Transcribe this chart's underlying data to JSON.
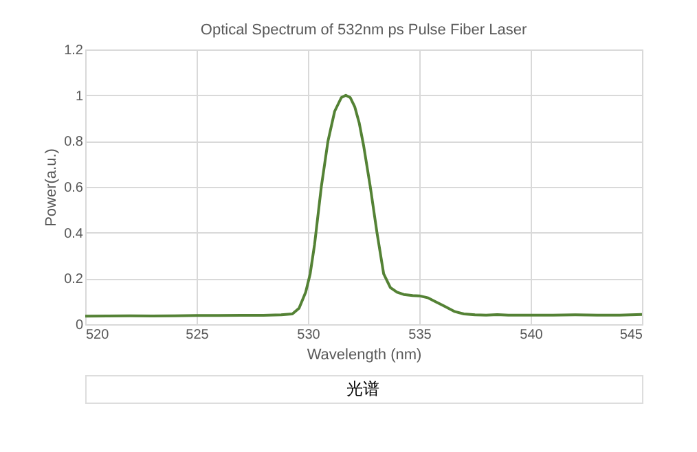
{
  "chart_data": {
    "type": "line",
    "title": "Optical Spectrum of 532nm ps Pulse Fiber Laser",
    "xlabel": "Wavelength (nm)",
    "ylabel": "Power(a.u.)",
    "annotations": [
      "光谱"
    ],
    "series": [
      {
        "color": "#548235",
        "x": [
          520,
          521,
          522,
          523,
          524,
          525,
          526,
          527,
          528,
          528.8,
          529.3,
          529.6,
          529.9,
          530.1,
          530.3,
          530.6,
          530.9,
          531.2,
          531.5,
          531.7,
          531.9,
          532.1,
          532.3,
          532.5,
          532.8,
          533.1,
          533.4,
          533.7,
          534.0,
          534.3,
          534.7,
          535.0,
          535.4,
          535.7,
          536.1,
          536.6,
          537.0,
          537.5,
          538.0,
          538.5,
          539,
          540,
          541,
          542,
          543,
          544,
          545
        ],
        "values": [
          0.035,
          0.036,
          0.037,
          0.036,
          0.037,
          0.038,
          0.038,
          0.039,
          0.039,
          0.041,
          0.045,
          0.07,
          0.14,
          0.22,
          0.35,
          0.6,
          0.8,
          0.93,
          0.99,
          1.0,
          0.99,
          0.95,
          0.88,
          0.78,
          0.6,
          0.4,
          0.22,
          0.16,
          0.14,
          0.13,
          0.125,
          0.124,
          0.115,
          0.1,
          0.08,
          0.055,
          0.045,
          0.041,
          0.04,
          0.042,
          0.04,
          0.04,
          0.04,
          0.041,
          0.04,
          0.04,
          0.043
        ]
      }
    ],
    "xlim": [
      520,
      545
    ],
    "xticks": [
      520,
      525,
      530,
      535,
      540,
      545
    ],
    "ylim": [
      0,
      1.2
    ],
    "yticks": [
      0,
      0.2,
      0.4,
      0.6,
      0.8,
      1,
      1.2
    ],
    "grid": true,
    "line_style": "solid",
    "marker": "none"
  }
}
